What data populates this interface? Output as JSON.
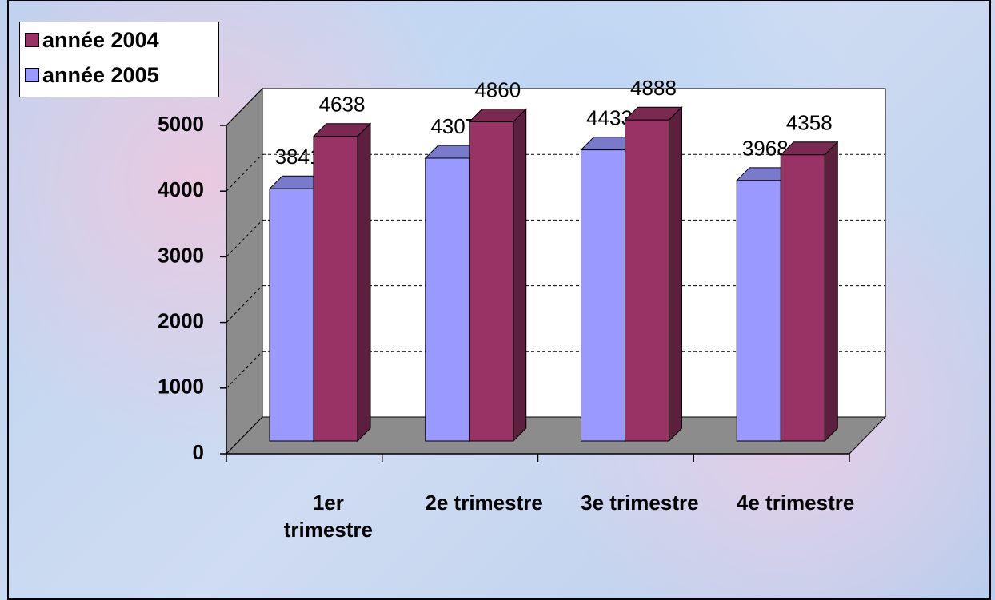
{
  "chart_data": {
    "type": "bar3d",
    "categories": [
      "1er trimestre",
      "2e trimestre",
      "3e trimestre",
      "4e trimestre"
    ],
    "series": [
      {
        "name": "année 2005",
        "color": "#9999ff",
        "values": [
          3841,
          4307,
          4433,
          3968
        ]
      },
      {
        "name": "année 2004",
        "color": "#993366",
        "values": [
          4638,
          4860,
          4888,
          4358
        ]
      }
    ],
    "ylim": [
      0,
      5000
    ],
    "yticks": [
      0,
      1000,
      2000,
      3000,
      4000,
      5000
    ],
    "grid": true,
    "legend": "top-left"
  }
}
